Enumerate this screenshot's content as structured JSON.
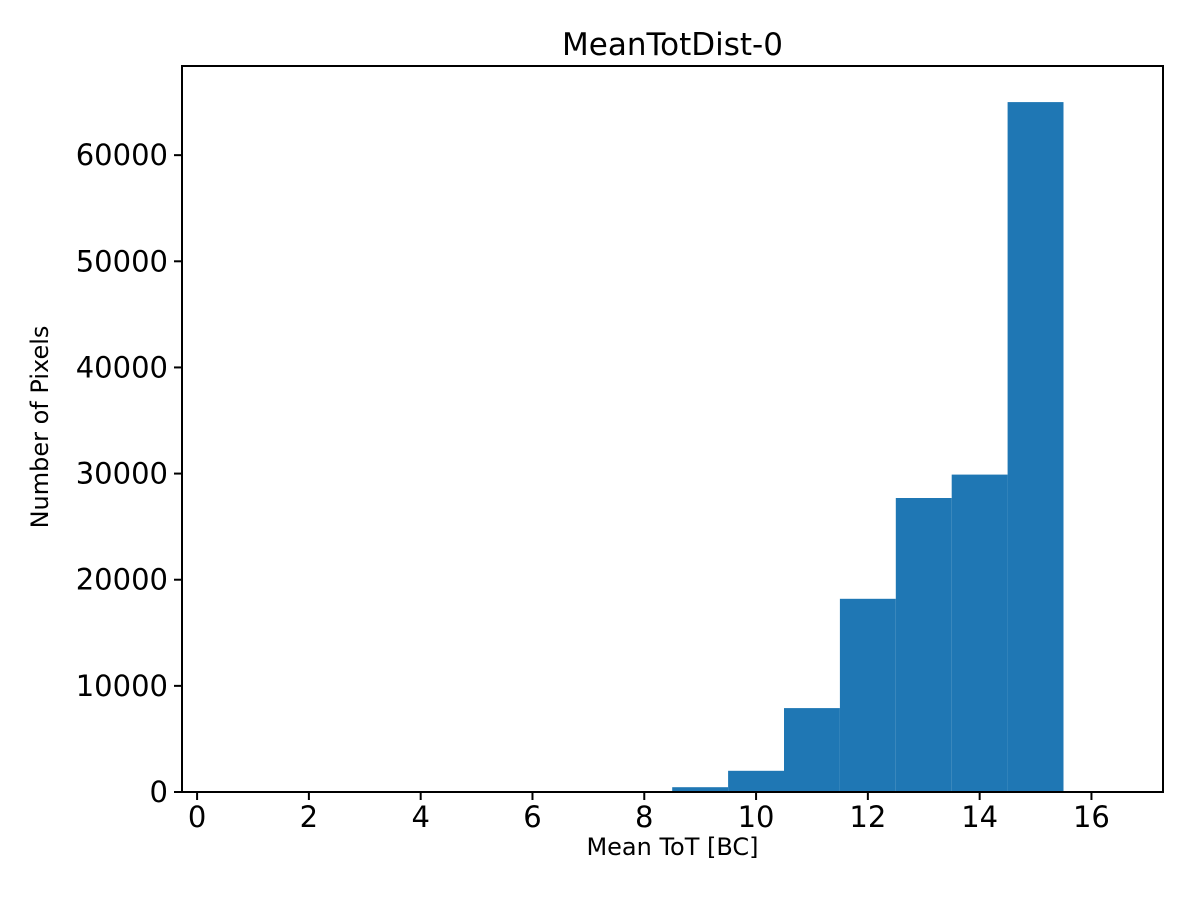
{
  "chart_data": {
    "type": "bar",
    "subtype": "histogram",
    "title": "MeanTotDist-0",
    "xlabel": "Mean ToT [BC]",
    "ylabel": "Number of Pixels",
    "bin_centers": [
      9,
      10,
      11,
      12,
      13,
      14,
      15
    ],
    "bin_width": 1,
    "bin_edges": [
      8.5,
      9.5,
      10.5,
      11.5,
      12.5,
      13.5,
      14.5,
      15.5
    ],
    "values": [
      450,
      2000,
      7900,
      18200,
      27700,
      29900,
      65000
    ],
    "x_ticks": [
      0,
      2,
      4,
      6,
      8,
      10,
      12,
      14,
      16
    ],
    "y_ticks": [
      0,
      10000,
      20000,
      30000,
      40000,
      50000,
      60000
    ],
    "xlim": [
      -0.27,
      17.28
    ],
    "ylim": [
      0,
      68400
    ],
    "bar_color": "#1f77b4",
    "axis_color": "#000000",
    "background_color": "#ffffff",
    "grid": false,
    "legend_position": "none"
  }
}
